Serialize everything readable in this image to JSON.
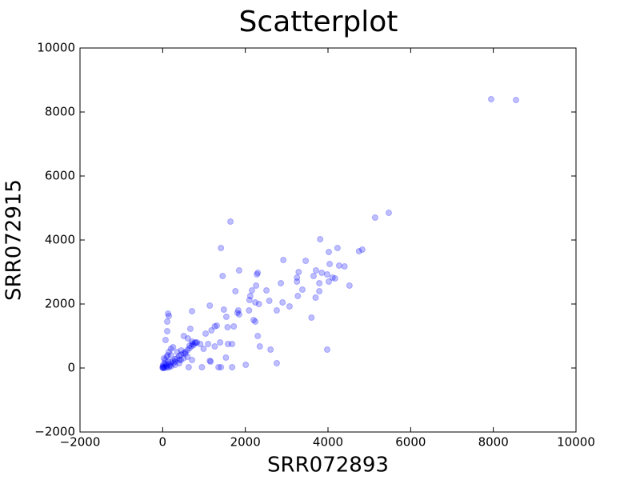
{
  "chart_data": {
    "type": "scatter",
    "title": "Scatterplot",
    "x_label": "SRR072893",
    "y_label": "SRR072915",
    "color": "#0000ff",
    "opacity": 0.25,
    "grid": false,
    "xlim": [
      -2000,
      10000
    ],
    "ylim": [
      -2000,
      10000
    ],
    "xticks": [
      {
        "value": -2000,
        "label": "−2000"
      },
      0,
      2000,
      4000,
      6000,
      8000,
      10000
    ],
    "yticks": [
      {
        "value": -2000,
        "label": "−2000"
      },
      0,
      2000,
      4000,
      6000,
      8000,
      10000
    ],
    "x": [
      7948,
      8548,
      5470,
      5140,
      1640,
      3810,
      1410,
      4230,
      4830,
      4020,
      4750,
      1850,
      2920,
      3460,
      2300,
      2280,
      3290,
      1450,
      4270,
      4400,
      4040,
      3710,
      3850,
      3250,
      3250,
      3650,
      3980,
      4110,
      4170,
      2860,
      4020,
      3790,
      4520,
      2260,
      2160,
      2510,
      3380,
      3270,
      3700,
      3790,
      1760,
      2120,
      2330,
      2240,
      2580,
      2100,
      2900,
      3070,
      2760,
      2090,
      1830,
      1850,
      1810,
      1480,
      1140,
      710,
      130,
      150,
      110,
      3600,
      2240,
      2200,
      1540,
      1720,
      1570,
      1310,
      1180,
      1260,
      670,
      110,
      2300,
      3980,
      2610,
      2350,
      70,
      1040,
      610,
      510,
      1680,
      1580,
      1390,
      1100,
      910,
      830,
      710,
      1260,
      990,
      710,
      440,
      1140,
      1160,
      1530,
      2760,
      2010,
      1350,
      1410,
      1680,
      950,
      630,
      0,
      20,
      50,
      80,
      100,
      150,
      200,
      250,
      300,
      350,
      400,
      450,
      500,
      550,
      600,
      650,
      700,
      750,
      800,
      780,
      720,
      30,
      60,
      100,
      120,
      150,
      200,
      250,
      300,
      400,
      500,
      600,
      200,
      300,
      400,
      100,
      150,
      50,
      10,
      5,
      0,
      40,
      200,
      350,
      450,
      550,
      650,
      130,
      180,
      260
    ],
    "values": [
      8400,
      8375,
      4850,
      4700,
      4575,
      4025,
      3750,
      3750,
      3700,
      3625,
      3650,
      3050,
      3375,
      3350,
      2975,
      2925,
      3000,
      2875,
      3200,
      3175,
      3250,
      3050,
      2975,
      2825,
      2700,
      2875,
      2925,
      2825,
      2800,
      2650,
      2700,
      2650,
      2575,
      2575,
      2425,
      2425,
      2450,
      2250,
      2200,
      2400,
      2400,
      2250,
      2000,
      2050,
      2100,
      2125,
      2050,
      1925,
      1800,
      1800,
      1800,
      1675,
      1725,
      1825,
      1950,
      1775,
      1700,
      1625,
      1450,
      1575,
      1450,
      1500,
      1600,
      1300,
      1275,
      1325,
      1175,
      1300,
      1225,
      1150,
      1000,
      575,
      575,
      675,
      875,
      1075,
      925,
      1000,
      750,
      750,
      800,
      750,
      750,
      800,
      825,
      675,
      600,
      250,
      250,
      225,
      200,
      325,
      150,
      100,
      25,
      25,
      25,
      25,
      25,
      0,
      10,
      40,
      100,
      60,
      120,
      180,
      220,
      280,
      300,
      380,
      420,
      460,
      500,
      560,
      620,
      680,
      720,
      780,
      800,
      760,
      300,
      250,
      350,
      400,
      500,
      600,
      650,
      200,
      250,
      300,
      350,
      50,
      100,
      150,
      10,
      30,
      150,
      100,
      50,
      20,
      0,
      400,
      500,
      550,
      450,
      700,
      200,
      80,
      150
    ]
  }
}
